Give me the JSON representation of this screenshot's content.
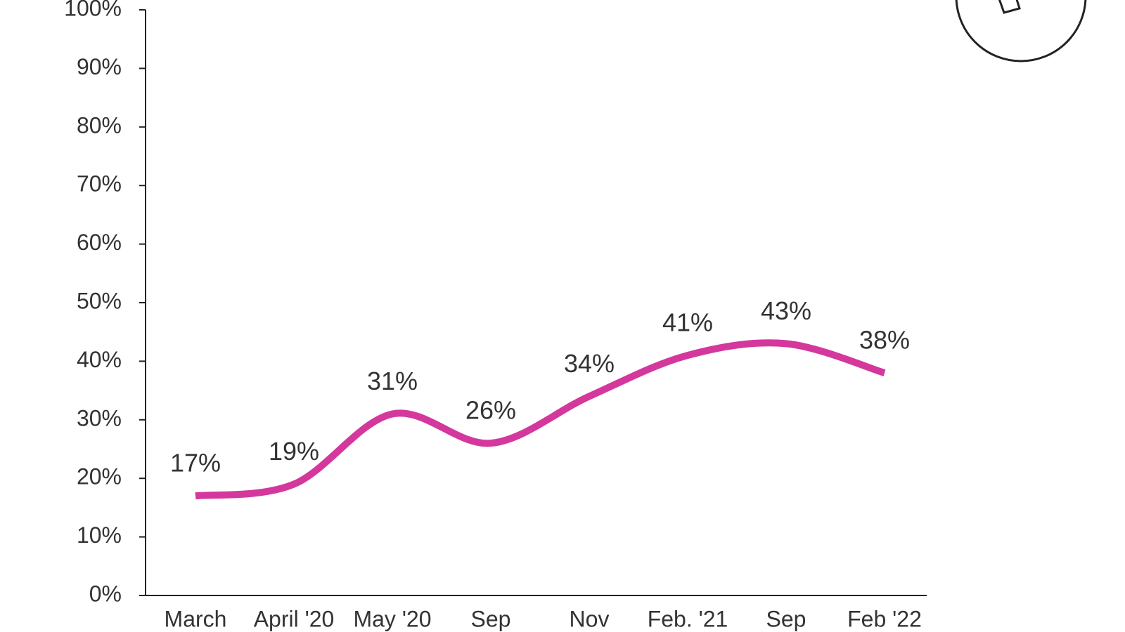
{
  "chart_data": {
    "type": "line",
    "categories": [
      "March",
      "April '20",
      "May '20",
      "Sep",
      "Nov",
      "Feb. '21",
      "Sep",
      "Feb '22"
    ],
    "series": [
      {
        "color": "#d4389c",
        "values": [
          17,
          19,
          31,
          26,
          34,
          41,
          43,
          38
        ],
        "value_labels": [
          "17%",
          "19%",
          "31%",
          "26%",
          "34%",
          "41%",
          "43%",
          "38%"
        ]
      }
    ],
    "ylim": [
      0,
      100
    ],
    "yticks": [
      {
        "value": 0,
        "label": "0%"
      },
      {
        "value": 10,
        "label": "10%"
      },
      {
        "value": 20,
        "label": "20%"
      },
      {
        "value": 30,
        "label": "30%"
      },
      {
        "value": 40,
        "label": "40%"
      },
      {
        "value": 50,
        "label": "50%"
      },
      {
        "value": 60,
        "label": "60%"
      },
      {
        "value": 70,
        "label": "70%"
      },
      {
        "value": 80,
        "label": "80%"
      },
      {
        "value": 90,
        "label": "90%"
      },
      {
        "value": 100,
        "label": "100%"
      }
    ],
    "grid": false,
    "smooth": true
  }
}
